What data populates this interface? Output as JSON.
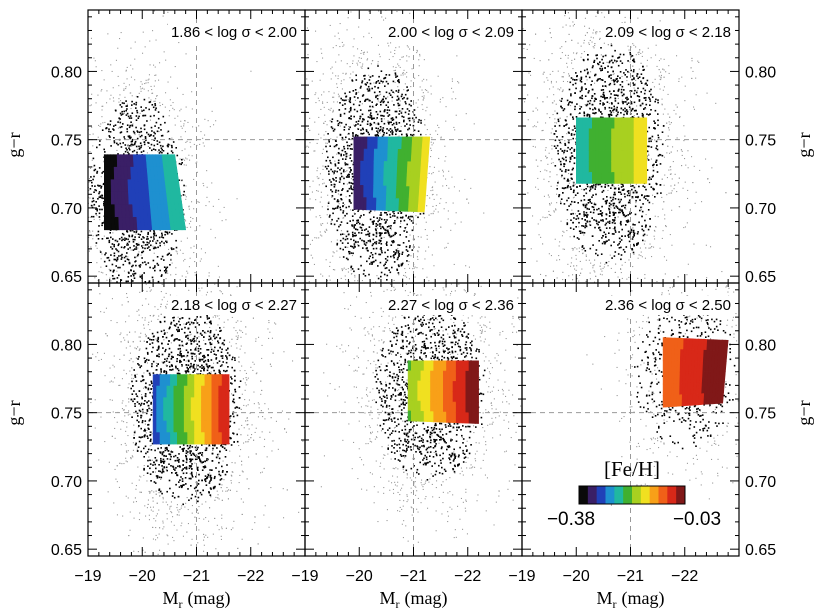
{
  "chart_data": {
    "type": "scatter",
    "layout": "2x3 panel grid",
    "xlabel_main": "M",
    "xlabel_sub": "r",
    "xlabel_unit": "(mag)",
    "ylabel": "g−r",
    "x_range": [
      -19,
      -23
    ],
    "x_ticks": [
      -19,
      -20,
      -21,
      -22
    ],
    "x_tick_labels": [
      "−19",
      "−20",
      "−21",
      "−22"
    ],
    "rows": [
      {
        "y_range": [
          0.645,
          0.845
        ],
        "y_ticks": [
          0.65,
          0.7,
          0.75,
          0.8
        ],
        "y_tick_labels": [
          "0.65",
          "0.70",
          "0.75",
          "0.80"
        ],
        "ref_line_y": 0.75
      },
      {
        "y_range": [
          0.645,
          0.845
        ],
        "y_ticks": [
          0.65,
          0.7,
          0.75,
          0.8
        ],
        "y_tick_labels": [
          "0.65",
          "0.70",
          "0.75",
          "0.80"
        ],
        "ref_line_y": 0.75
      }
    ],
    "ref_line_x": -21,
    "panels": [
      {
        "label": "1.86 < log σ < 2.00",
        "scatter_center": [
          -19.9,
          0.71
        ],
        "scatter_spread": [
          0.55,
          0.045
        ],
        "n_points": 1800,
        "grid_corners": [
          [
            -19.3,
            0.739
          ],
          [
            -20.6,
            0.739
          ],
          [
            -20.8,
            0.684
          ],
          [
            -19.3,
            0.684
          ]
        ],
        "feh_left_right": [
          -0.38,
          -0.24
        ]
      },
      {
        "label": "2.00 < log σ < 2.09",
        "scatter_center": [
          -20.3,
          0.725
        ],
        "scatter_spread": [
          0.6,
          0.05
        ],
        "n_points": 2200,
        "grid_corners": [
          [
            -19.9,
            0.752
          ],
          [
            -21.3,
            0.752
          ],
          [
            -21.2,
            0.697
          ],
          [
            -19.9,
            0.699
          ]
        ],
        "feh_left_right": [
          -0.36,
          -0.16
        ]
      },
      {
        "label": "2.09 < log σ < 2.18",
        "scatter_center": [
          -20.6,
          0.74
        ],
        "scatter_spread": [
          0.65,
          0.05
        ],
        "n_points": 2600,
        "grid_corners": [
          [
            -20.0,
            0.766
          ],
          [
            -21.3,
            0.766
          ],
          [
            -21.3,
            0.718
          ],
          [
            -20.0,
            0.718
          ]
        ],
        "feh_left_right": [
          -0.26,
          -0.16
        ]
      },
      {
        "label": "2.18 < log σ < 2.27",
        "scatter_center": [
          -20.8,
          0.755
        ],
        "scatter_spread": [
          0.65,
          0.045
        ],
        "n_points": 2600,
        "grid_corners": [
          [
            -20.2,
            0.778
          ],
          [
            -21.6,
            0.778
          ],
          [
            -21.6,
            0.727
          ],
          [
            -20.2,
            0.727
          ]
        ],
        "feh_left_right": [
          -0.33,
          -0.06
        ]
      },
      {
        "label": "2.27 < log σ < 2.36",
        "scatter_center": [
          -21.3,
          0.765
        ],
        "scatter_spread": [
          0.65,
          0.04
        ],
        "n_points": 1900,
        "grid_corners": [
          [
            -20.9,
            0.788
          ],
          [
            -22.2,
            0.788
          ],
          [
            -22.2,
            0.742
          ],
          [
            -20.9,
            0.744
          ]
        ],
        "feh_left_right": [
          -0.22,
          -0.03
        ]
      },
      {
        "label": "2.36 < log σ < 2.50",
        "scatter_center": [
          -22.0,
          0.78
        ],
        "scatter_spread": [
          0.6,
          0.035
        ],
        "n_points": 800,
        "grid_corners": [
          [
            -21.6,
            0.805
          ],
          [
            -22.8,
            0.803
          ],
          [
            -22.7,
            0.757
          ],
          [
            -21.6,
            0.754
          ]
        ],
        "feh_left_right": [
          -0.12,
          -0.03
        ]
      }
    ],
    "colorbar": {
      "title": "[Fe/H]",
      "min_label": "−0.38",
      "max_label": "−0.03",
      "range": [
        -0.38,
        -0.03
      ],
      "colors": [
        "#0a0a0a",
        "#3a1f66",
        "#2040b8",
        "#1e90d0",
        "#20b8a0",
        "#40b030",
        "#a8d020",
        "#f0e020",
        "#f8a018",
        "#f06018",
        "#d82818",
        "#801818"
      ]
    }
  }
}
